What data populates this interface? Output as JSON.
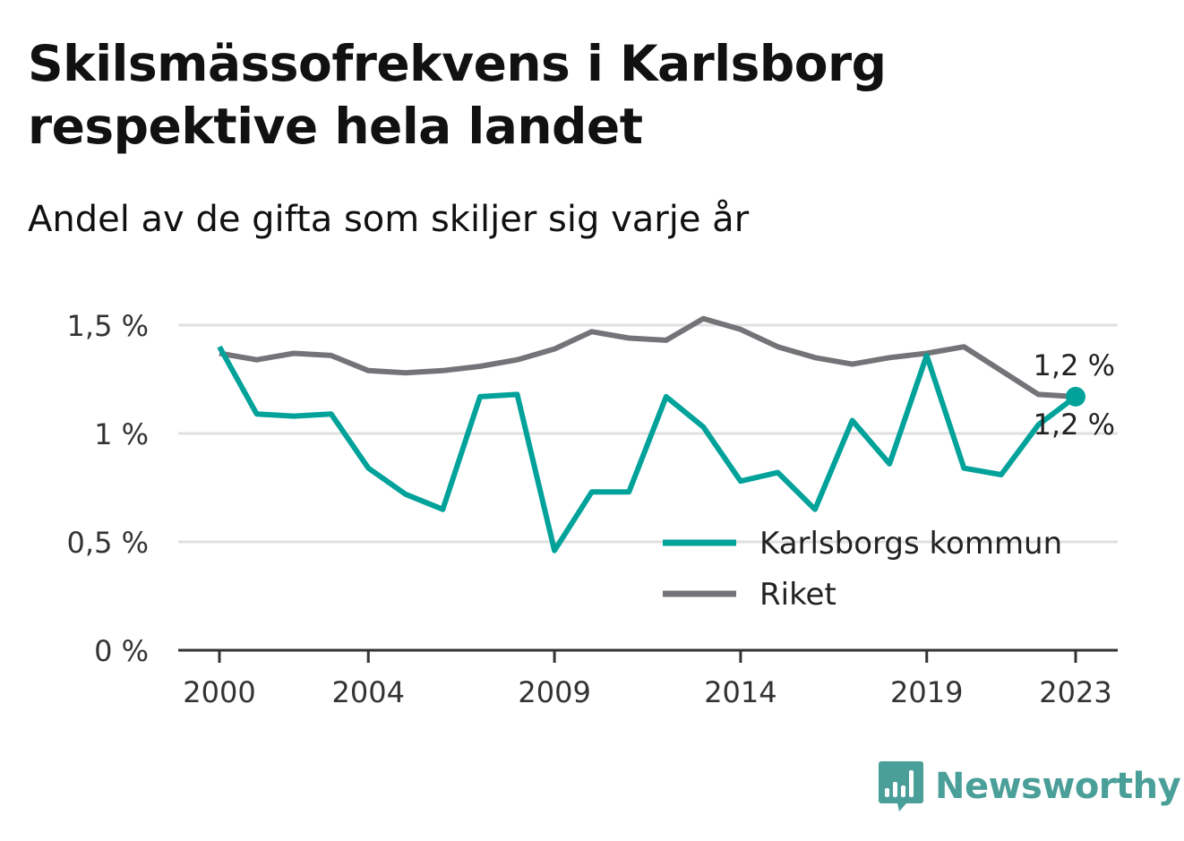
{
  "title": "Skilsmässofrekvens i Karlsborg respektive hela landet",
  "subtitle": "Andel av de gifta som skiljer sig varje år",
  "brand": {
    "name": "Newsworthy",
    "icon": "bar-chart-speech-bubble-icon",
    "color": "#4a9f99"
  },
  "chart_data": {
    "type": "line",
    "x": [
      2000,
      2001,
      2002,
      2003,
      2004,
      2005,
      2006,
      2007,
      2008,
      2009,
      2010,
      2011,
      2012,
      2013,
      2014,
      2015,
      2016,
      2017,
      2018,
      2019,
      2020,
      2021,
      2022,
      2023
    ],
    "x_ticks": [
      2000,
      2004,
      2009,
      2014,
      2019,
      2023
    ],
    "x_tick_labels": [
      "2000",
      "2004",
      "2009",
      "2014",
      "2019",
      "2023"
    ],
    "ylim": [
      0,
      1.5
    ],
    "y_ticks": [
      0,
      0.5,
      1,
      1.5
    ],
    "y_tick_labels": [
      "0 %",
      "0,5 %",
      "1 %",
      "1,5 %"
    ],
    "grid": true,
    "legend_position": "bottom-right",
    "series": [
      {
        "name": "Karlsborgs kommun",
        "color": "#00a29a",
        "values": [
          1.4,
          1.09,
          1.08,
          1.09,
          0.84,
          0.72,
          0.65,
          1.17,
          1.18,
          0.46,
          0.73,
          0.73,
          1.17,
          1.03,
          0.78,
          0.82,
          0.65,
          1.06,
          0.86,
          1.36,
          0.84,
          0.81,
          1.04,
          1.17
        ],
        "end_label": "1,2 %"
      },
      {
        "name": "Riket",
        "color": "#747378",
        "values": [
          1.37,
          1.34,
          1.37,
          1.36,
          1.29,
          1.28,
          1.29,
          1.31,
          1.34,
          1.39,
          1.47,
          1.44,
          1.43,
          1.53,
          1.48,
          1.4,
          1.35,
          1.32,
          1.35,
          1.37,
          1.4,
          1.29,
          1.18,
          1.17
        ],
        "end_label": "1,2 %"
      }
    ]
  }
}
